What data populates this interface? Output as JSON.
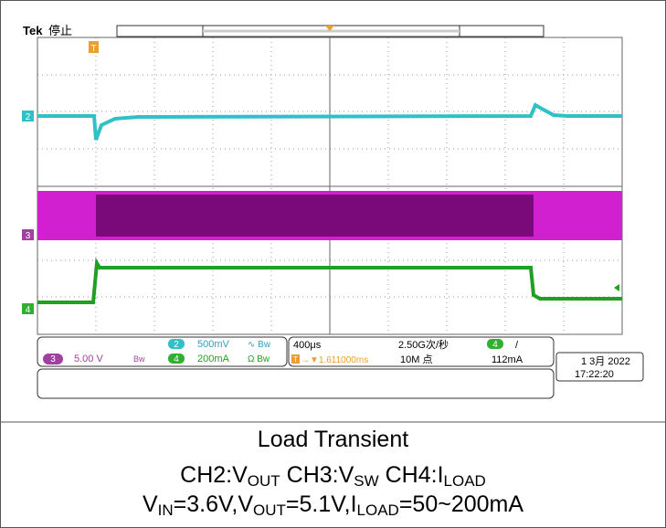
{
  "header": {
    "brand": "Tek",
    "status": "停止"
  },
  "markers": {
    "trigger": "T",
    "ch2": "2",
    "ch3": "3",
    "ch4": "4"
  },
  "readout": {
    "ch2": {
      "num": "2",
      "scale": "500mV",
      "mode": "∿ Bw"
    },
    "ch4": {
      "num": "4",
      "scale": "200mA",
      "mode": "Ω Bw"
    },
    "ch3": {
      "num": "3",
      "scale": "5.00 V",
      "mode": "Bw"
    },
    "timebase": "400μs",
    "position": "→▼1.611000ms",
    "sample_rate": "2.50G次/秒",
    "record_length": "10M 点",
    "trigger": {
      "channel": "4",
      "slope": "/",
      "level": "112mA"
    },
    "date": "1 3月 2022",
    "time": "17:22:20"
  },
  "caption": {
    "title": "Load Transient",
    "line2": [
      "CH2:V",
      "OUT",
      " CH3:V",
      "SW",
      " CH4:I",
      "LOAD"
    ],
    "line3": [
      "V",
      "IN",
      "=3.6V,V",
      "OUT",
      "=5.1V,I",
      "LOAD",
      "=50~200mA"
    ]
  }
}
